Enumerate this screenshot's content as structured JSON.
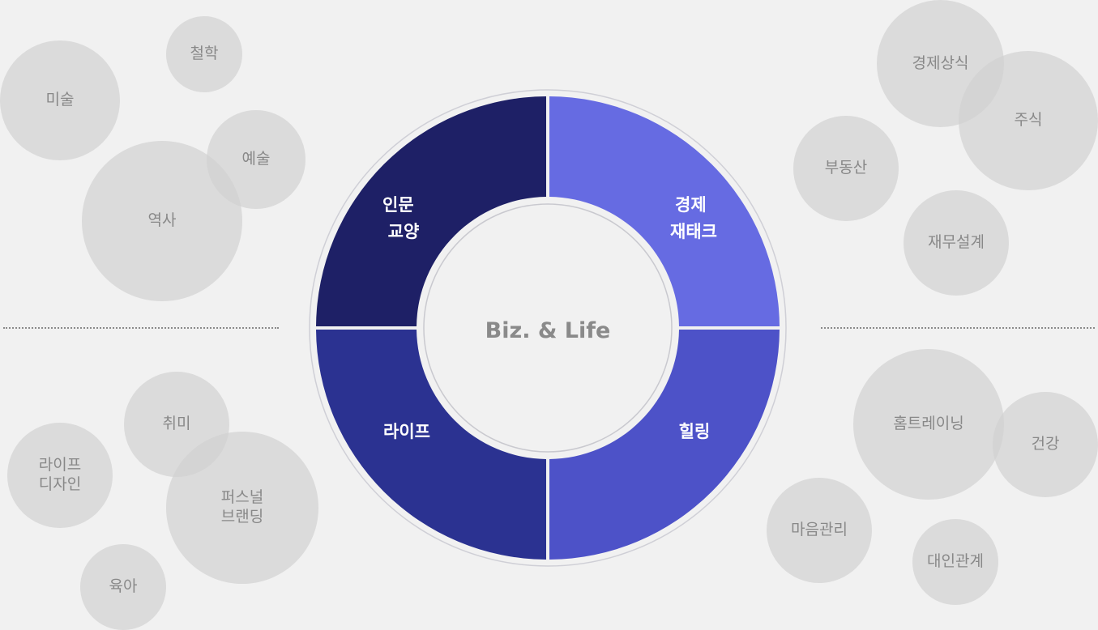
{
  "center_label": "Biz. & Life",
  "colors": {
    "top_left": "#1e2066",
    "top_right": "#666be2",
    "bottom_left": "#2b3291",
    "bottom_right": "#4d52c8"
  },
  "quadrants": {
    "top_left": [
      "인문",
      "교양"
    ],
    "top_right": [
      "경제",
      "재태크"
    ],
    "bottom_left": [
      "라이프"
    ],
    "bottom_right": [
      "힐링"
    ]
  },
  "topics": {
    "top_left": [
      "미술",
      "철학",
      "예술",
      "역사"
    ],
    "top_right": [
      "경제상식",
      "주식",
      "부동산",
      "재무설계"
    ],
    "bottom_left": [
      "취미",
      "라이프\n디자인",
      "퍼스널\n브랜딩",
      "육아"
    ],
    "bottom_right": [
      "홈트레이닝",
      "건강",
      "마음관리",
      "대인관계"
    ]
  }
}
